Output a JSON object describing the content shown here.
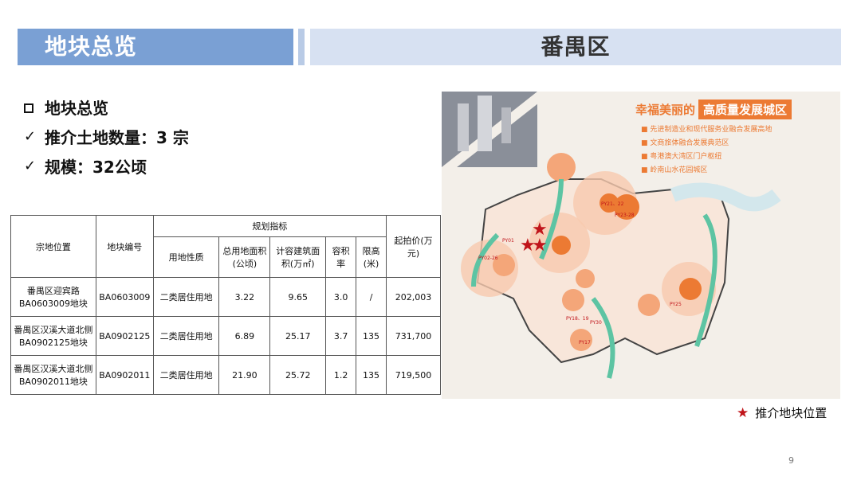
{
  "header": {
    "left_title": "地块总览",
    "right_title": "番禺区"
  },
  "bullets": [
    {
      "icon": "square-bullet-icon",
      "text": "地块总览"
    },
    {
      "icon": "check-icon",
      "text": "推介土地数量：3 宗"
    },
    {
      "icon": "check-icon",
      "text": "规模：32公顷"
    }
  ],
  "table": {
    "headers": {
      "location": "宗地位置",
      "code": "地块编号",
      "group": "规划指标",
      "use": "用地性质",
      "area": "总用地面积(公顷)",
      "gfa": "计容建筑面积(万㎡)",
      "far": "容积率",
      "height": "限高(米)",
      "price": "起拍价(万元)"
    },
    "rows": [
      {
        "location": "番禺区迎宾路BA0603009地块",
        "code": "BA0603009",
        "use": "二类居住用地",
        "area": "3.22",
        "gfa": "9.65",
        "far": "3.0",
        "height": "/",
        "price": "202,003"
      },
      {
        "location": "番禺区汉溪大道北侧BA0902125地块",
        "code": "BA0902125",
        "use": "二类居住用地",
        "area": "6.89",
        "gfa": "25.17",
        "far": "3.7",
        "height": "135",
        "price": "731,700"
      },
      {
        "location": "番禺区汉溪大道北侧BA0902011地块",
        "code": "BA0902011",
        "use": "二类居住用地",
        "area": "21.90",
        "gfa": "25.72",
        "far": "1.2",
        "height": "135",
        "price": "719,500"
      }
    ]
  },
  "map": {
    "title_prefix": "幸福美丽的",
    "title_highlight": "高质量发展城区",
    "points": [
      "先进制造业和现代服务业融合发展高地",
      "文商旅体融合发展典范区",
      "粤港澳大湾区门户枢纽",
      "岭南山水花园城区"
    ],
    "labels": [
      "PY21、22",
      "PY23-28",
      "PY01",
      "PY02-26",
      "PY25",
      "PY18、19",
      "PY30",
      "PY17"
    ],
    "colors": {
      "orange": "#ec7a33",
      "green": "#5dc4a3",
      "star": "#c0141a"
    }
  },
  "legend": {
    "text": "推介地块位置"
  },
  "page_number": "9"
}
